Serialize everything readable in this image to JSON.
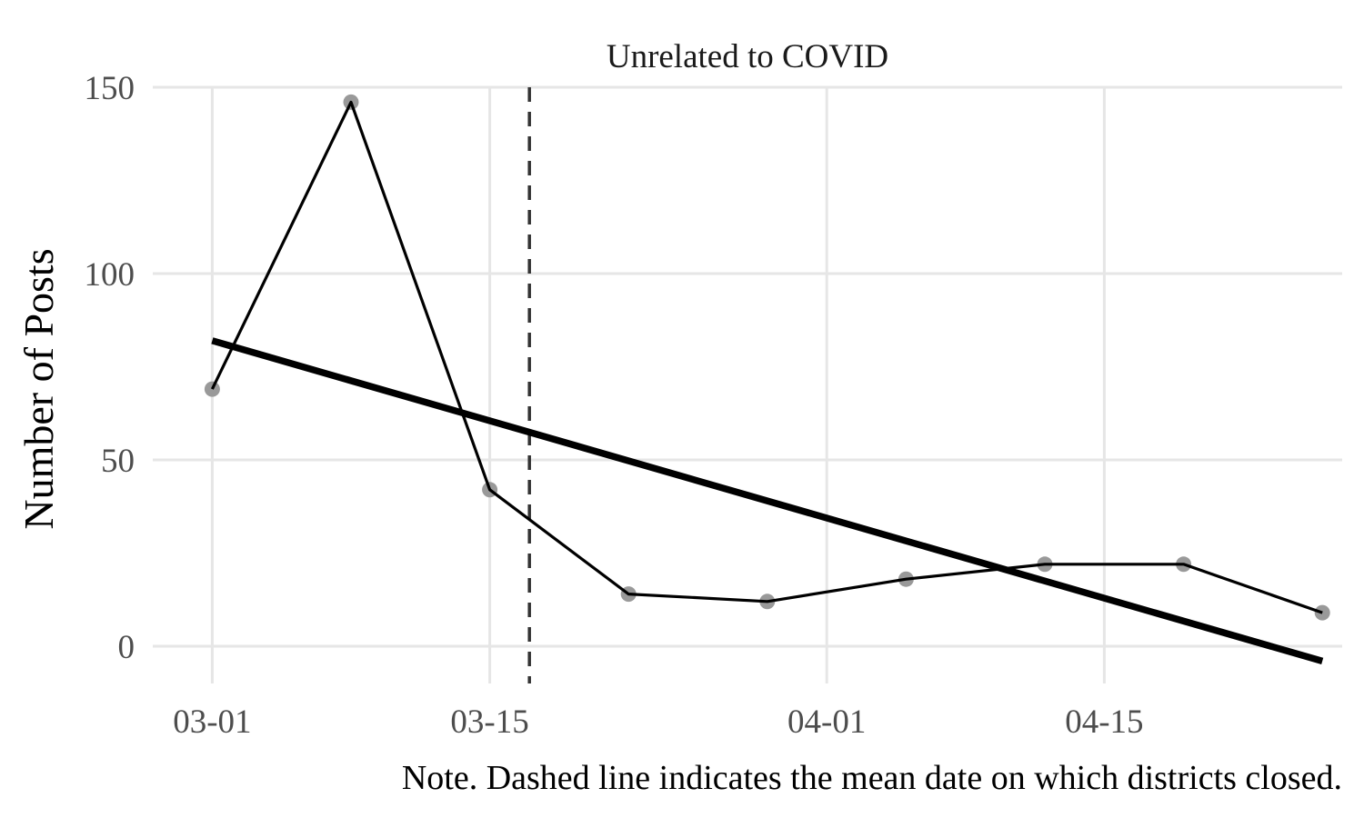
{
  "chart_data": {
    "type": "line",
    "title": "Unrelated to COVID",
    "ylabel": "Number of Posts",
    "xlabel": "",
    "caption": "Note. Dashed line indicates the mean date on which districts closed.",
    "xlim": [
      "2020-02-27",
      "2020-04-27"
    ],
    "ylim": [
      -10,
      150
    ],
    "x_ticks": [
      {
        "date": "2020-03-01",
        "label": "03-01"
      },
      {
        "date": "2020-03-15",
        "label": "03-15"
      },
      {
        "date": "2020-04-01",
        "label": "04-01"
      },
      {
        "date": "2020-04-15",
        "label": "04-15"
      }
    ],
    "y_ticks": [
      0,
      50,
      100,
      150
    ],
    "grid": true,
    "series": [
      {
        "x": [
          "2020-03-01",
          "2020-03-08",
          "2020-03-15",
          "2020-03-22",
          "2020-03-29",
          "2020-04-05",
          "2020-04-12",
          "2020-04-19",
          "2020-04-26"
        ],
        "y": [
          69,
          146,
          42,
          14,
          12,
          18,
          22,
          22,
          9
        ],
        "style": "line-with-points",
        "line_color": "#000000",
        "point_color": "#999999"
      }
    ],
    "trend_line": {
      "x": [
        "2020-03-01",
        "2020-04-26"
      ],
      "y": [
        82,
        -4
      ],
      "color": "#000000"
    },
    "reference_line": {
      "x": "2020-03-17",
      "style": "dashed",
      "color": "#333333"
    }
  }
}
